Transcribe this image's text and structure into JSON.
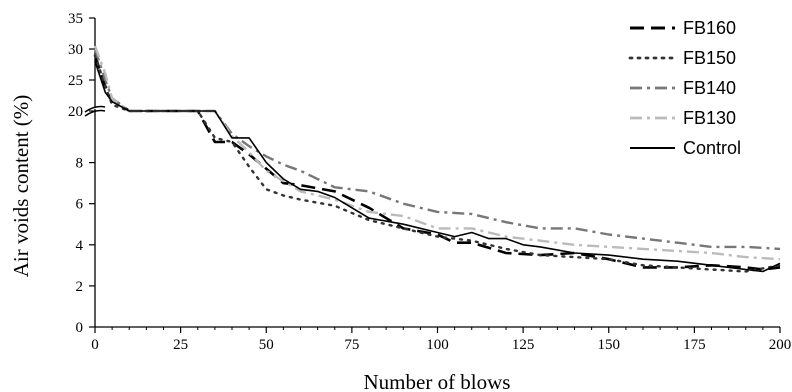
{
  "chart_data": {
    "type": "line",
    "xlabel": "Number of  blows",
    "ylabel": "Air voids content (%)",
    "xlim": [
      0,
      200
    ],
    "x_ticks": [
      "0",
      "25",
      "50",
      "75",
      "100",
      "125",
      "150",
      "175",
      "200"
    ],
    "y_axis_break": {
      "lower_range": [
        0,
        10
      ],
      "upper_range": [
        20,
        35
      ]
    },
    "y_ticks_lower": [
      "0",
      "2",
      "4",
      "6",
      "8"
    ],
    "y_ticks_upper": [
      "20",
      "25",
      "30",
      "35"
    ],
    "grid": false,
    "legend_position": "top-right",
    "series": [
      {
        "name": "FB160",
        "color": "#000000",
        "style": "dashed",
        "points": [
          [
            0,
            29
          ],
          [
            3,
            24
          ],
          [
            5,
            22
          ],
          [
            10,
            19.8
          ],
          [
            20,
            19.8
          ],
          [
            30,
            19.8
          ],
          [
            35,
            9.0
          ],
          [
            40,
            9.0
          ],
          [
            45,
            8.4
          ],
          [
            50,
            7.7
          ],
          [
            55,
            7.0
          ],
          [
            60,
            6.9
          ],
          [
            70,
            6.6
          ],
          [
            75,
            6.2
          ],
          [
            80,
            5.8
          ],
          [
            90,
            4.8
          ],
          [
            100,
            4.5
          ],
          [
            105,
            4.1
          ],
          [
            110,
            4.1
          ],
          [
            120,
            3.6
          ],
          [
            130,
            3.5
          ],
          [
            140,
            3.6
          ],
          [
            150,
            3.3
          ],
          [
            160,
            2.9
          ],
          [
            170,
            2.9
          ],
          [
            180,
            3.0
          ],
          [
            190,
            2.9
          ],
          [
            195,
            2.8
          ],
          [
            200,
            2.9
          ]
        ]
      },
      {
        "name": "FB150",
        "color": "#333333",
        "style": "dotted",
        "points": [
          [
            0,
            29
          ],
          [
            3,
            24
          ],
          [
            5,
            21
          ],
          [
            10,
            19.8
          ],
          [
            20,
            19.8
          ],
          [
            30,
            19.8
          ],
          [
            35,
            9.2
          ],
          [
            40,
            9.0
          ],
          [
            45,
            7.8
          ],
          [
            50,
            6.7
          ],
          [
            55,
            6.4
          ],
          [
            60,
            6.2
          ],
          [
            70,
            5.9
          ],
          [
            80,
            5.2
          ],
          [
            90,
            4.8
          ],
          [
            100,
            4.4
          ],
          [
            110,
            4.2
          ],
          [
            120,
            3.8
          ],
          [
            130,
            3.5
          ],
          [
            140,
            3.4
          ],
          [
            150,
            3.3
          ],
          [
            160,
            3.0
          ],
          [
            170,
            2.9
          ],
          [
            180,
            2.8
          ],
          [
            190,
            2.7
          ],
          [
            200,
            3.0
          ]
        ]
      },
      {
        "name": "FB140",
        "color": "#777777",
        "style": "dashdot",
        "points": [
          [
            0,
            30
          ],
          [
            3,
            25
          ],
          [
            5,
            22
          ],
          [
            10,
            19.8
          ],
          [
            20,
            19.8
          ],
          [
            30,
            19.8
          ],
          [
            35,
            19.8
          ],
          [
            40,
            9.4
          ],
          [
            45,
            8.8
          ],
          [
            50,
            8.3
          ],
          [
            55,
            7.9
          ],
          [
            60,
            7.6
          ],
          [
            70,
            6.8
          ],
          [
            80,
            6.6
          ],
          [
            90,
            6.0
          ],
          [
            100,
            5.6
          ],
          [
            110,
            5.5
          ],
          [
            120,
            5.1
          ],
          [
            130,
            4.8
          ],
          [
            140,
            4.8
          ],
          [
            150,
            4.5
          ],
          [
            160,
            4.3
          ],
          [
            170,
            4.1
          ],
          [
            180,
            3.9
          ],
          [
            190,
            3.9
          ],
          [
            200,
            3.8
          ]
        ]
      },
      {
        "name": "FB130",
        "color": "#bbbbbb",
        "style": "dashdot",
        "points": [
          [
            0,
            30.5
          ],
          [
            3,
            26
          ],
          [
            5,
            22
          ],
          [
            10,
            19.8
          ],
          [
            20,
            19.8
          ],
          [
            30,
            19.8
          ],
          [
            35,
            19.5
          ],
          [
            40,
            9.3
          ],
          [
            45,
            8.5
          ],
          [
            50,
            7.6
          ],
          [
            55,
            7.1
          ],
          [
            60,
            6.6
          ],
          [
            70,
            6.2
          ],
          [
            80,
            5.6
          ],
          [
            90,
            5.4
          ],
          [
            100,
            4.8
          ],
          [
            110,
            4.8
          ],
          [
            120,
            4.4
          ],
          [
            130,
            4.2
          ],
          [
            140,
            4.0
          ],
          [
            150,
            3.9
          ],
          [
            160,
            3.8
          ],
          [
            170,
            3.7
          ],
          [
            180,
            3.6
          ],
          [
            190,
            3.4
          ],
          [
            200,
            3.3
          ]
        ]
      },
      {
        "name": "Control",
        "color": "#000000",
        "style": "solid",
        "points": [
          [
            0,
            28
          ],
          [
            3,
            23
          ],
          [
            5,
            21.5
          ],
          [
            10,
            19.8
          ],
          [
            20,
            19.8
          ],
          [
            30,
            19.8
          ],
          [
            35,
            19.8
          ],
          [
            40,
            9.2
          ],
          [
            45,
            9.2
          ],
          [
            50,
            8.0
          ],
          [
            55,
            7.2
          ],
          [
            60,
            6.7
          ],
          [
            65,
            6.6
          ],
          [
            70,
            6.3
          ],
          [
            75,
            5.8
          ],
          [
            80,
            5.3
          ],
          [
            90,
            5.0
          ],
          [
            100,
            4.6
          ],
          [
            105,
            4.4
          ],
          [
            110,
            4.6
          ],
          [
            115,
            4.3
          ],
          [
            120,
            4.3
          ],
          [
            125,
            4.0
          ],
          [
            130,
            3.9
          ],
          [
            140,
            3.6
          ],
          [
            150,
            3.5
          ],
          [
            160,
            3.3
          ],
          [
            170,
            3.2
          ],
          [
            180,
            3.0
          ],
          [
            190,
            2.8
          ],
          [
            195,
            2.7
          ],
          [
            200,
            3.1
          ]
        ]
      }
    ]
  }
}
